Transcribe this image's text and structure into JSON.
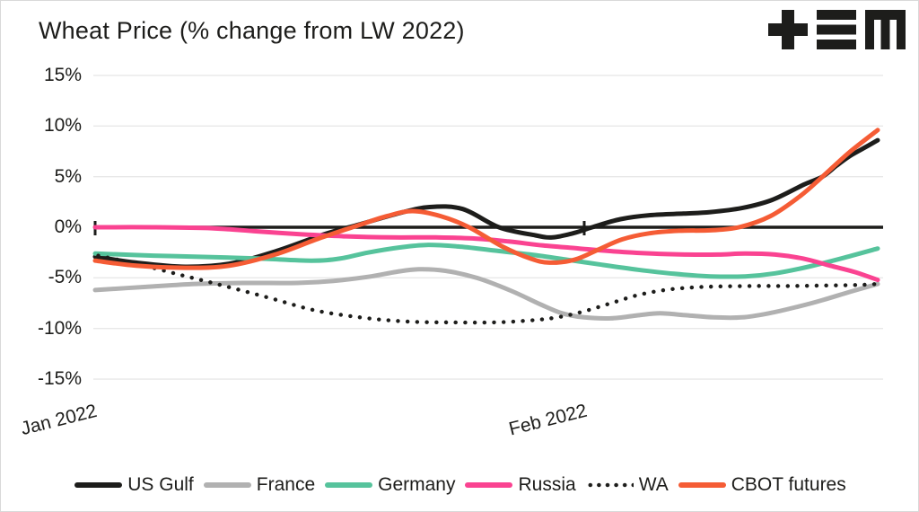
{
  "header": {
    "title": "Wheat Price (% change from LW 2022)",
    "logo": "tem-logo"
  },
  "chart_data": {
    "type": "line",
    "title": "Wheat Price (% change from LW 2022)",
    "xlabel": "",
    "ylabel": "",
    "x_unit": "days",
    "ylim": [
      -15,
      15
    ],
    "grid": true,
    "zero_line": true,
    "legend_position": "bottom",
    "y_ticks": [
      {
        "v": 15,
        "label": "15%"
      },
      {
        "v": 10,
        "label": "10%"
      },
      {
        "v": 5,
        "label": "5%"
      },
      {
        "v": 0,
        "label": "0%"
      },
      {
        "v": -5,
        "label": "-5%"
      },
      {
        "v": -10,
        "label": "-10%"
      },
      {
        "v": -15,
        "label": "-15%"
      }
    ],
    "x_ticks": [
      {
        "t": 0,
        "label": "Jan 2022"
      },
      {
        "t": 31,
        "label": "Feb 2022"
      }
    ],
    "series": [
      {
        "name": "US Gulf",
        "color": "#1d1d1b",
        "style": "solid",
        "points": [
          [
            0,
            -2.9
          ],
          [
            2.6,
            -3.5
          ],
          [
            5.7,
            -3.9
          ],
          [
            8.5,
            -3.6
          ],
          [
            11.4,
            -2.4
          ],
          [
            14.5,
            -0.7
          ],
          [
            16.8,
            0.3
          ],
          [
            19.3,
            1.4
          ],
          [
            21.2,
            2.0
          ],
          [
            23.3,
            1.8
          ],
          [
            25.6,
            0.0
          ],
          [
            27.9,
            -0.8
          ],
          [
            29.0,
            -1.0
          ],
          [
            30.4,
            -0.55
          ],
          [
            31.5,
            0.0
          ],
          [
            33.3,
            0.8
          ],
          [
            35.2,
            1.2
          ],
          [
            37.3,
            1.35
          ],
          [
            39.0,
            1.5
          ],
          [
            41.0,
            1.9
          ],
          [
            42.9,
            2.7
          ],
          [
            44.9,
            4.2
          ],
          [
            46.1,
            5.0
          ],
          [
            47.0,
            6.1
          ],
          [
            47.8,
            7.0
          ],
          [
            48.7,
            7.8
          ],
          [
            49.6,
            8.6
          ]
        ]
      },
      {
        "name": "France",
        "color": "#b1b1b1",
        "style": "solid",
        "points": [
          [
            0,
            -6.2
          ],
          [
            3.1,
            -5.9
          ],
          [
            6.3,
            -5.6
          ],
          [
            9.4,
            -5.5
          ],
          [
            12.8,
            -5.5
          ],
          [
            15.1,
            -5.3
          ],
          [
            17.3,
            -4.9
          ],
          [
            19.1,
            -4.4
          ],
          [
            20.5,
            -4.15
          ],
          [
            22.2,
            -4.3
          ],
          [
            24.2,
            -5.0
          ],
          [
            26.4,
            -6.3
          ],
          [
            28.2,
            -7.6
          ],
          [
            29.6,
            -8.5
          ],
          [
            31.0,
            -8.9
          ],
          [
            32.7,
            -9.0
          ],
          [
            34.4,
            -8.7
          ],
          [
            35.8,
            -8.5
          ],
          [
            37.5,
            -8.7
          ],
          [
            39.2,
            -8.9
          ],
          [
            41.0,
            -8.9
          ],
          [
            42.7,
            -8.5
          ],
          [
            44.4,
            -7.9
          ],
          [
            46.1,
            -7.2
          ],
          [
            47.8,
            -6.4
          ],
          [
            49.6,
            -5.6
          ]
        ]
      },
      {
        "name": "Germany",
        "color": "#56c39c",
        "style": "solid",
        "points": [
          [
            0,
            -2.6
          ],
          [
            3.7,
            -2.8
          ],
          [
            7.4,
            -2.95
          ],
          [
            10.5,
            -3.1
          ],
          [
            13.7,
            -3.3
          ],
          [
            15.5,
            -3.1
          ],
          [
            17.3,
            -2.5
          ],
          [
            19.3,
            -2.0
          ],
          [
            21.0,
            -1.75
          ],
          [
            23.0,
            -1.9
          ],
          [
            25.3,
            -2.3
          ],
          [
            27.6,
            -2.7
          ],
          [
            29.9,
            -3.2
          ],
          [
            32.1,
            -3.7
          ],
          [
            34.4,
            -4.2
          ],
          [
            36.7,
            -4.6
          ],
          [
            39.0,
            -4.85
          ],
          [
            41.2,
            -4.85
          ],
          [
            43.1,
            -4.55
          ],
          [
            45.2,
            -3.9
          ],
          [
            47.5,
            -3.0
          ],
          [
            49.6,
            -2.1
          ]
        ]
      },
      {
        "name": "Russia",
        "color": "#fa4391",
        "style": "solid",
        "points": [
          [
            0,
            0.0
          ],
          [
            3.7,
            0.0
          ],
          [
            7.4,
            -0.1
          ],
          [
            10.2,
            -0.4
          ],
          [
            13.1,
            -0.7
          ],
          [
            15.9,
            -0.9
          ],
          [
            18.8,
            -1.0
          ],
          [
            21.6,
            -1.0
          ],
          [
            23.9,
            -1.1
          ],
          [
            26.2,
            -1.4
          ],
          [
            28.4,
            -1.8
          ],
          [
            30.7,
            -2.1
          ],
          [
            33.0,
            -2.4
          ],
          [
            35.3,
            -2.6
          ],
          [
            37.5,
            -2.7
          ],
          [
            39.5,
            -2.7
          ],
          [
            41.2,
            -2.6
          ],
          [
            43.1,
            -2.7
          ],
          [
            44.9,
            -3.1
          ],
          [
            46.6,
            -3.8
          ],
          [
            48.1,
            -4.4
          ],
          [
            49.6,
            -5.2
          ]
        ]
      },
      {
        "name": "WA",
        "color": "#1d1d1b",
        "style": "dotted",
        "points": [
          [
            0.2,
            -2.8
          ],
          [
            2.6,
            -3.6
          ],
          [
            5.4,
            -4.7
          ],
          [
            8.2,
            -5.8
          ],
          [
            11.1,
            -7.0
          ],
          [
            13.9,
            -8.2
          ],
          [
            16.8,
            -8.9
          ],
          [
            19.6,
            -9.3
          ],
          [
            22.5,
            -9.4
          ],
          [
            25.3,
            -9.4
          ],
          [
            27.6,
            -9.2
          ],
          [
            29.3,
            -8.9
          ],
          [
            31.0,
            -8.3
          ],
          [
            32.7,
            -7.5
          ],
          [
            34.4,
            -6.7
          ],
          [
            36.1,
            -6.2
          ],
          [
            37.8,
            -5.95
          ],
          [
            39.5,
            -5.85
          ],
          [
            41.8,
            -5.8
          ],
          [
            44.1,
            -5.8
          ],
          [
            46.4,
            -5.75
          ],
          [
            48.4,
            -5.7
          ],
          [
            49.6,
            -5.6
          ]
        ]
      },
      {
        "name": "CBOT futures",
        "color": "#f55c35",
        "style": "solid",
        "points": [
          [
            0,
            -3.3
          ],
          [
            2.6,
            -3.8
          ],
          [
            5.7,
            -4.0
          ],
          [
            8.5,
            -3.8
          ],
          [
            11.4,
            -2.7
          ],
          [
            14.2,
            -1.1
          ],
          [
            16.7,
            0.2
          ],
          [
            18.5,
            1.1
          ],
          [
            20.1,
            1.6
          ],
          [
            21.9,
            1.1
          ],
          [
            23.7,
            0.0
          ],
          [
            25.8,
            -1.9
          ],
          [
            27.6,
            -3.1
          ],
          [
            28.8,
            -3.5
          ],
          [
            30.4,
            -3.2
          ],
          [
            31.9,
            -2.2
          ],
          [
            33.4,
            -1.2
          ],
          [
            35.1,
            -0.6
          ],
          [
            37.0,
            -0.35
          ],
          [
            39.0,
            -0.3
          ],
          [
            40.8,
            0.0
          ],
          [
            42.8,
            1.1
          ],
          [
            44.7,
            3.1
          ],
          [
            46.1,
            5.0
          ],
          [
            47.8,
            7.4
          ],
          [
            49.6,
            9.6
          ]
        ]
      }
    ]
  }
}
